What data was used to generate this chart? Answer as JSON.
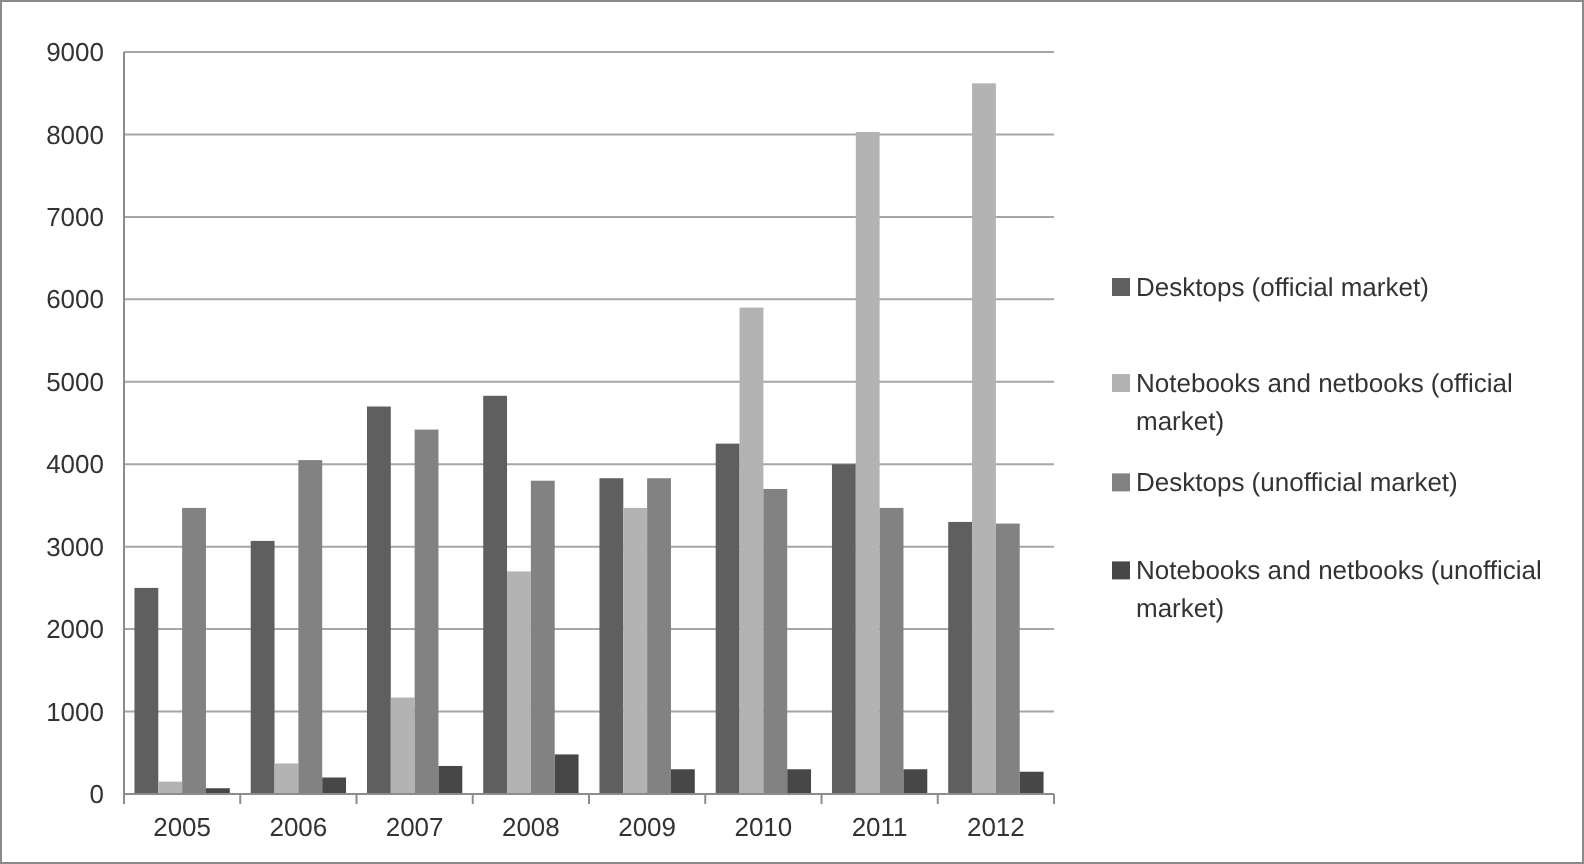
{
  "chart_data": {
    "type": "bar",
    "categories": [
      "2005",
      "2006",
      "2007",
      "2008",
      "2009",
      "2010",
      "2011",
      "2012"
    ],
    "series": [
      {
        "name": "Desktops (official market)",
        "color": "#5f5f5f",
        "values": [
          2500,
          3070,
          4700,
          4830,
          3830,
          4250,
          4000,
          3300
        ]
      },
      {
        "name": "Notebooks and netbooks (official market)",
        "color": "#b3b3b3",
        "values": [
          150,
          370,
          1170,
          2700,
          3470,
          5900,
          8030,
          8620
        ]
      },
      {
        "name": "Desktops (unofficial market)",
        "color": "#828282",
        "values": [
          3470,
          4050,
          4420,
          3800,
          3830,
          3700,
          3470,
          3280
        ]
      },
      {
        "name": "Notebooks and netbooks (unofficial market)",
        "color": "#474747",
        "values": [
          70,
          200,
          340,
          480,
          300,
          300,
          300,
          270
        ]
      }
    ],
    "ylim": [
      0,
      9000
    ],
    "yticks": [
      0,
      1000,
      2000,
      3000,
      4000,
      5000,
      6000,
      7000,
      8000,
      9000
    ],
    "grid": "y",
    "legend": "right"
  }
}
